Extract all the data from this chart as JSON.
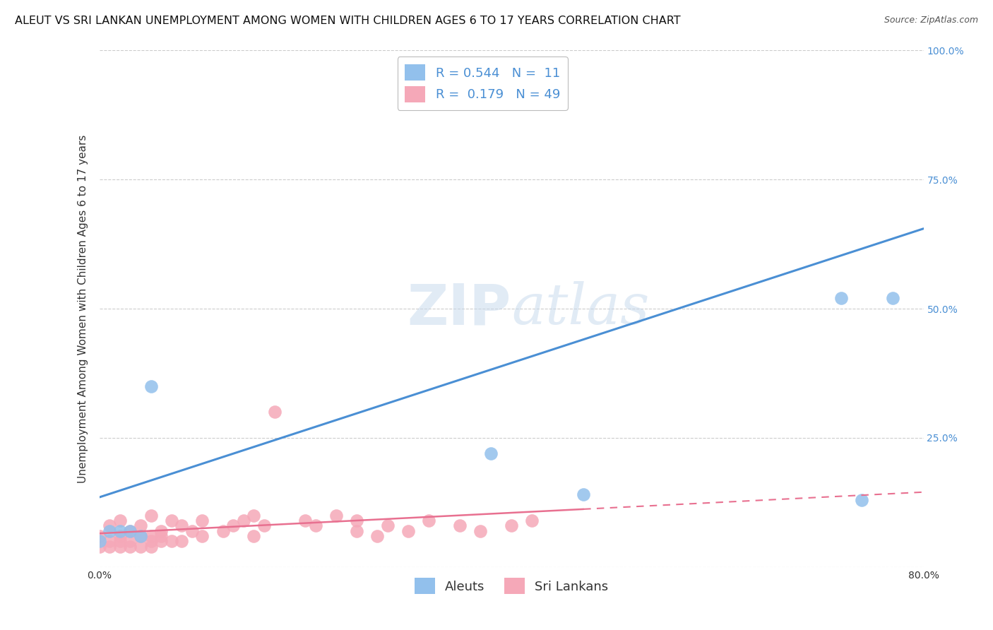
{
  "title": "ALEUT VS SRI LANKAN UNEMPLOYMENT AMONG WOMEN WITH CHILDREN AGES 6 TO 17 YEARS CORRELATION CHART",
  "source": "Source: ZipAtlas.com",
  "ylabel": "Unemployment Among Women with Children Ages 6 to 17 years",
  "xlabel": "",
  "watermark_zip": "ZIP",
  "watermark_atlas": "atlas",
  "xlim": [
    0.0,
    0.8
  ],
  "ylim": [
    0.0,
    1.0
  ],
  "xticks": [
    0.0,
    0.2,
    0.4,
    0.6,
    0.8
  ],
  "xticklabels": [
    "0.0%",
    "",
    "",
    "",
    "80.0%"
  ],
  "yticks": [
    0.0,
    0.25,
    0.5,
    0.75,
    1.0
  ],
  "yticklabels_right": [
    "",
    "25.0%",
    "50.0%",
    "75.0%",
    "100.0%"
  ],
  "aleuts_R": 0.544,
  "aleuts_N": 11,
  "srilankans_R": 0.179,
  "srilankans_N": 49,
  "aleuts_color": "#92C0EC",
  "srilankans_color": "#F5A8B8",
  "aleuts_line_color": "#4A8FD4",
  "srilankans_line_color": "#E87090",
  "aleuts_x": [
    0.0,
    0.01,
    0.02,
    0.03,
    0.04,
    0.05,
    0.38,
    0.47,
    0.72,
    0.74,
    0.77
  ],
  "aleuts_y": [
    0.05,
    0.07,
    0.07,
    0.07,
    0.06,
    0.35,
    0.22,
    0.14,
    0.52,
    0.13,
    0.52
  ],
  "srilankans_x": [
    0.0,
    0.0,
    0.01,
    0.01,
    0.01,
    0.02,
    0.02,
    0.02,
    0.02,
    0.03,
    0.03,
    0.03,
    0.04,
    0.04,
    0.04,
    0.05,
    0.05,
    0.05,
    0.05,
    0.06,
    0.06,
    0.06,
    0.07,
    0.07,
    0.08,
    0.08,
    0.09,
    0.1,
    0.1,
    0.12,
    0.13,
    0.14,
    0.15,
    0.15,
    0.16,
    0.17,
    0.2,
    0.21,
    0.23,
    0.25,
    0.25,
    0.27,
    0.28,
    0.3,
    0.32,
    0.35,
    0.37,
    0.4,
    0.42
  ],
  "srilankans_y": [
    0.04,
    0.06,
    0.04,
    0.05,
    0.08,
    0.04,
    0.05,
    0.09,
    0.06,
    0.04,
    0.05,
    0.07,
    0.04,
    0.06,
    0.08,
    0.04,
    0.05,
    0.06,
    0.1,
    0.05,
    0.06,
    0.07,
    0.05,
    0.09,
    0.05,
    0.08,
    0.07,
    0.06,
    0.09,
    0.07,
    0.08,
    0.09,
    0.06,
    0.1,
    0.08,
    0.3,
    0.09,
    0.08,
    0.1,
    0.07,
    0.09,
    0.06,
    0.08,
    0.07,
    0.09,
    0.08,
    0.07,
    0.08,
    0.09
  ],
  "aleuts_line_x0": 0.0,
  "aleuts_line_y0": 0.135,
  "aleuts_line_x1": 0.8,
  "aleuts_line_y1": 0.655,
  "srilankans_line_x0": 0.0,
  "srilankans_line_y0": 0.065,
  "srilankans_line_x1": 0.8,
  "srilankans_line_y1": 0.145,
  "background_color": "#FFFFFF",
  "plot_bg_color": "#FFFFFF",
  "grid_color": "#CCCCCC",
  "title_fontsize": 11.5,
  "axis_label_fontsize": 11,
  "tick_fontsize": 10,
  "legend_fontsize": 13
}
